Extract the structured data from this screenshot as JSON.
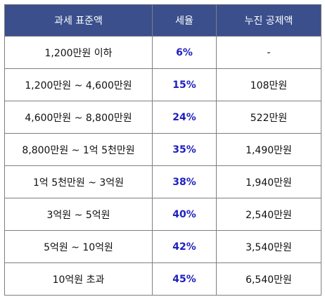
{
  "table": {
    "headers": [
      "과세 표준액",
      "세율",
      "누진 공제액"
    ],
    "rows": [
      {
        "bracket": "1,200만원 이하",
        "rate": "6%",
        "deduction": "-"
      },
      {
        "bracket": "1,200만원 ~ 4,600만원",
        "rate": "15%",
        "deduction": "108만원"
      },
      {
        "bracket": "4,600만원 ~ 8,800만원",
        "rate": "24%",
        "deduction": "522만원"
      },
      {
        "bracket": "8,800만원 ~ 1억 5천만원",
        "rate": "35%",
        "deduction": "1,490만원"
      },
      {
        "bracket": "1억 5천만원 ~ 3억원",
        "rate": "38%",
        "deduction": "1,940만원"
      },
      {
        "bracket": "3억원 ~ 5억원",
        "rate": "40%",
        "deduction": "2,540만원"
      },
      {
        "bracket": "5억원 ~ 10억원",
        "rate": "42%",
        "deduction": "3,540만원"
      },
      {
        "bracket": "10억원 초과",
        "rate": "45%",
        "deduction": "6,540만원"
      }
    ]
  },
  "colors": {
    "header_bg": "#3a4f8c",
    "header_text": "#ffffff",
    "rate_text": "#1f1fbf",
    "border": "#7f7f7f"
  }
}
